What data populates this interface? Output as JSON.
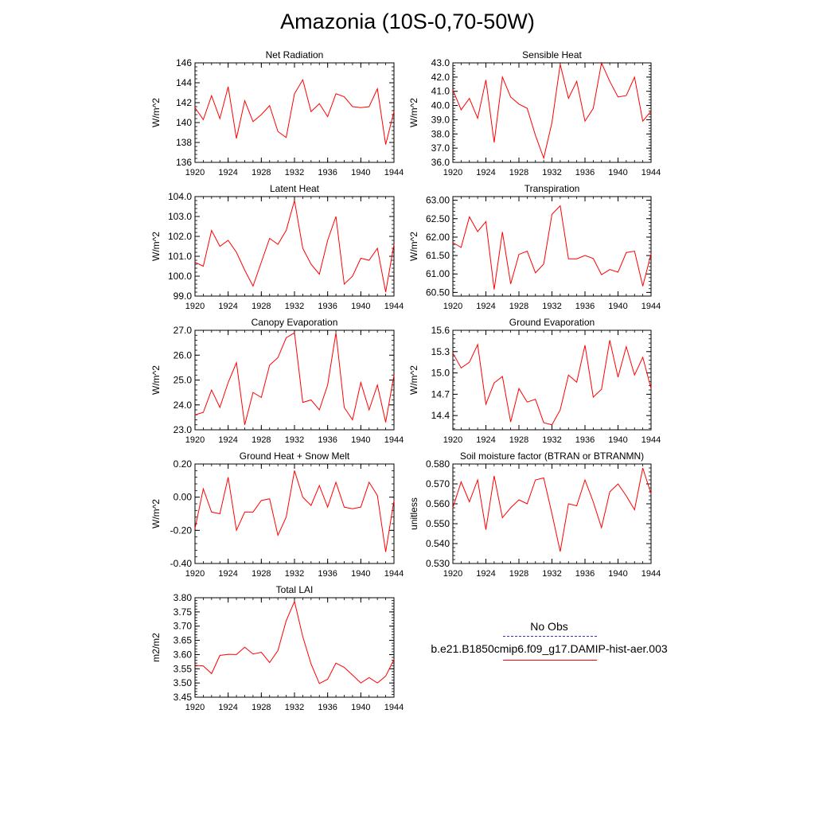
{
  "title": "Amazonia (10S-0,70-50W)",
  "series_color": "#ff0000",
  "obs_color": "#3333cc",
  "legend": {
    "obs_label": "No Obs",
    "case_label": "b.e21.B1850cmip6.f09_g17.DAMIP-hist-aer.003"
  },
  "chart_data": [
    {
      "type": "line",
      "title": "Net Radiation",
      "ylabel": "W/m^2",
      "xlim": [
        1920,
        1944
      ],
      "ylim": [
        136,
        146
      ],
      "x_ticks": [
        "1920",
        "1924",
        "1928",
        "1932",
        "1936",
        "1940",
        "1944"
      ],
      "y_ticks": [
        "136",
        "138",
        "140",
        "142",
        "144",
        "146"
      ],
      "x": [
        1920,
        1921,
        1922,
        1923,
        1924,
        1925,
        1926,
        1927,
        1928,
        1929,
        1930,
        1931,
        1932,
        1933,
        1934,
        1935,
        1936,
        1937,
        1938,
        1939,
        1940,
        1941,
        1942,
        1943,
        1944
      ],
      "values": [
        141.5,
        140.3,
        142.7,
        140.4,
        143.6,
        138.4,
        142.2,
        140.1,
        140.8,
        141.7,
        139.1,
        138.5,
        142.9,
        144.3,
        141.1,
        141.9,
        140.6,
        142.9,
        142.6,
        141.6,
        141.5,
        141.6,
        143.4,
        137.8,
        141.1
      ]
    },
    {
      "type": "line",
      "title": "Sensible Heat",
      "ylabel": "W/m^2",
      "xlim": [
        1920,
        1944
      ],
      "ylim": [
        36.0,
        43.0
      ],
      "x_ticks": [
        "1920",
        "1924",
        "1928",
        "1932",
        "1936",
        "1940",
        "1944"
      ],
      "y_ticks": [
        "36.0",
        "37.0",
        "38.0",
        "39.0",
        "40.0",
        "41.0",
        "42.0",
        "43.0"
      ],
      "x": [
        1920,
        1921,
        1922,
        1923,
        1924,
        1925,
        1926,
        1927,
        1928,
        1929,
        1930,
        1931,
        1932,
        1933,
        1934,
        1935,
        1936,
        1937,
        1938,
        1939,
        1940,
        1941,
        1942,
        1943,
        1944
      ],
      "values": [
        41.1,
        39.7,
        40.5,
        39.1,
        41.8,
        37.4,
        42.0,
        40.6,
        40.1,
        39.8,
        37.9,
        36.3,
        38.8,
        42.9,
        40.5,
        41.7,
        38.9,
        39.8,
        43.0,
        41.7,
        40.6,
        40.7,
        42.0,
        38.9,
        39.6
      ]
    },
    {
      "type": "line",
      "title": "Latent Heat",
      "ylabel": "W/m^2",
      "xlim": [
        1920,
        1944
      ],
      "ylim": [
        99.0,
        104.0
      ],
      "x_ticks": [
        "1920",
        "1924",
        "1928",
        "1932",
        "1936",
        "1940",
        "1944"
      ],
      "y_ticks": [
        "99.0",
        "100.0",
        "101.0",
        "102.0",
        "103.0",
        "104.0"
      ],
      "x": [
        1920,
        1921,
        1922,
        1923,
        1924,
        1925,
        1926,
        1927,
        1928,
        1929,
        1930,
        1931,
        1932,
        1933,
        1934,
        1935,
        1936,
        1937,
        1938,
        1939,
        1940,
        1941,
        1942,
        1943,
        1944
      ],
      "values": [
        100.7,
        100.5,
        102.3,
        101.5,
        101.8,
        101.2,
        100.3,
        99.5,
        100.7,
        101.9,
        101.6,
        102.3,
        103.8,
        101.4,
        100.6,
        100.1,
        101.8,
        103.0,
        99.6,
        100.0,
        100.9,
        100.8,
        101.4,
        99.2,
        101.6
      ]
    },
    {
      "type": "line",
      "title": "Transpiration",
      "ylabel": "W/m^2",
      "xlim": [
        1920,
        1944
      ],
      "ylim": [
        60.4,
        63.1
      ],
      "x_ticks": [
        "1920",
        "1924",
        "1928",
        "1932",
        "1936",
        "1940",
        "1944"
      ],
      "y_ticks": [
        "60.50",
        "61.00",
        "61.50",
        "62.00",
        "62.50",
        "63.00"
      ],
      "x": [
        1920,
        1921,
        1922,
        1923,
        1924,
        1925,
        1926,
        1927,
        1928,
        1929,
        1930,
        1931,
        1932,
        1933,
        1934,
        1935,
        1936,
        1937,
        1938,
        1939,
        1940,
        1941,
        1942,
        1943,
        1944
      ],
      "values": [
        61.85,
        61.72,
        62.55,
        62.15,
        62.42,
        60.58,
        62.14,
        60.73,
        61.53,
        61.62,
        61.03,
        61.27,
        62.62,
        62.85,
        61.41,
        61.41,
        61.5,
        61.42,
        60.98,
        61.12,
        61.05,
        61.58,
        61.62,
        60.67,
        61.55
      ]
    },
    {
      "type": "line",
      "title": "Canopy Evaporation",
      "ylabel": "W/m^2",
      "xlim": [
        1920,
        1944
      ],
      "ylim": [
        23.0,
        27.0
      ],
      "x_ticks": [
        "1920",
        "1924",
        "1928",
        "1932",
        "1936",
        "1940",
        "1944"
      ],
      "y_ticks": [
        "23.0",
        "24.0",
        "25.0",
        "26.0",
        "27.0"
      ],
      "x": [
        1920,
        1921,
        1922,
        1923,
        1924,
        1925,
        1926,
        1927,
        1928,
        1929,
        1930,
        1931,
        1932,
        1933,
        1934,
        1935,
        1936,
        1937,
        1938,
        1939,
        1940,
        1941,
        1942,
        1943,
        1944
      ],
      "values": [
        23.6,
        23.7,
        24.6,
        23.9,
        24.9,
        25.7,
        23.2,
        24.5,
        24.3,
        25.6,
        25.9,
        26.7,
        26.9,
        24.1,
        24.2,
        23.8,
        24.8,
        26.9,
        23.9,
        23.4,
        24.9,
        23.8,
        24.8,
        23.3,
        25.2
      ]
    },
    {
      "type": "line",
      "title": "Ground Evaporation",
      "ylabel": "W/m^2",
      "xlim": [
        1920,
        1944
      ],
      "ylim": [
        14.2,
        15.6
      ],
      "x_ticks": [
        "1920",
        "1924",
        "1928",
        "1932",
        "1936",
        "1940",
        "1944"
      ],
      "y_ticks": [
        "14.4",
        "14.7",
        "15.0",
        "15.3",
        "15.6"
      ],
      "x": [
        1920,
        1921,
        1922,
        1923,
        1924,
        1925,
        1926,
        1927,
        1928,
        1929,
        1930,
        1931,
        1932,
        1933,
        1934,
        1935,
        1936,
        1937,
        1938,
        1939,
        1940,
        1941,
        1942,
        1943,
        1944
      ],
      "values": [
        15.28,
        15.07,
        15.15,
        15.4,
        14.56,
        14.86,
        14.95,
        14.31,
        14.78,
        14.59,
        14.63,
        14.3,
        14.27,
        14.48,
        14.97,
        14.87,
        15.39,
        14.66,
        14.77,
        15.46,
        14.94,
        15.37,
        14.97,
        15.22,
        14.78
      ]
    },
    {
      "type": "line",
      "title": "Ground Heat + Snow Melt",
      "ylabel": "W/m^2",
      "xlim": [
        1920,
        1944
      ],
      "ylim": [
        -0.4,
        0.2
      ],
      "x_ticks": [
        "1920",
        "1924",
        "1928",
        "1932",
        "1936",
        "1940",
        "1944"
      ],
      "y_ticks": [
        "-0.40",
        "-0.20",
        "0.00",
        "0.20"
      ],
      "x": [
        1920,
        1921,
        1922,
        1923,
        1924,
        1925,
        1926,
        1927,
        1928,
        1929,
        1930,
        1931,
        1932,
        1933,
        1934,
        1935,
        1936,
        1937,
        1938,
        1939,
        1940,
        1941,
        1942,
        1943,
        1944
      ],
      "values": [
        -0.19,
        0.05,
        -0.09,
        -0.1,
        0.12,
        -0.2,
        -0.09,
        -0.09,
        -0.02,
        -0.01,
        -0.23,
        -0.12,
        0.16,
        0.0,
        -0.05,
        0.07,
        -0.06,
        0.09,
        -0.06,
        -0.07,
        -0.06,
        0.09,
        0.01,
        -0.33,
        -0.02
      ]
    },
    {
      "type": "line",
      "title": "Soil moisture factor (BTRAN or BTRANMN)",
      "ylabel": "unitless",
      "xlim": [
        1920,
        1944
      ],
      "ylim": [
        0.53,
        0.58
      ],
      "x_ticks": [
        "1920",
        "1924",
        "1928",
        "1932",
        "1936",
        "1940",
        "1944"
      ],
      "y_ticks": [
        "0.530",
        "0.540",
        "0.550",
        "0.560",
        "0.570",
        "0.580"
      ],
      "x": [
        1920,
        1921,
        1922,
        1923,
        1924,
        1925,
        1926,
        1927,
        1928,
        1929,
        1930,
        1931,
        1932,
        1933,
        1934,
        1935,
        1936,
        1937,
        1938,
        1939,
        1940,
        1941,
        1942,
        1943,
        1944
      ],
      "values": [
        0.558,
        0.571,
        0.561,
        0.572,
        0.547,
        0.574,
        0.553,
        0.558,
        0.562,
        0.56,
        0.572,
        0.573,
        0.555,
        0.536,
        0.56,
        0.559,
        0.572,
        0.561,
        0.548,
        0.566,
        0.57,
        0.564,
        0.557,
        0.578,
        0.565
      ]
    },
    {
      "type": "line",
      "title": "Total LAI",
      "ylabel": "m2/m2",
      "xlim": [
        1920,
        1944
      ],
      "ylim": [
        3.45,
        3.8
      ],
      "x_ticks": [
        "1920",
        "1924",
        "1928",
        "1932",
        "1936",
        "1940",
        "1944"
      ],
      "y_ticks": [
        "3.45",
        "3.50",
        "3.55",
        "3.60",
        "3.65",
        "3.70",
        "3.75",
        "3.80"
      ],
      "x": [
        1920,
        1921,
        1922,
        1923,
        1924,
        1925,
        1926,
        1927,
        1928,
        1929,
        1930,
        1931,
        1932,
        1933,
        1934,
        1935,
        1936,
        1937,
        1938,
        1939,
        1940,
        1941,
        1942,
        1943,
        1944
      ],
      "values": [
        3.562,
        3.56,
        3.533,
        3.597,
        3.601,
        3.6,
        3.626,
        3.602,
        3.608,
        3.572,
        3.614,
        3.719,
        3.787,
        3.663,
        3.567,
        3.498,
        3.513,
        3.57,
        3.555,
        3.528,
        3.5,
        3.519,
        3.5,
        3.524,
        3.583
      ]
    }
  ]
}
